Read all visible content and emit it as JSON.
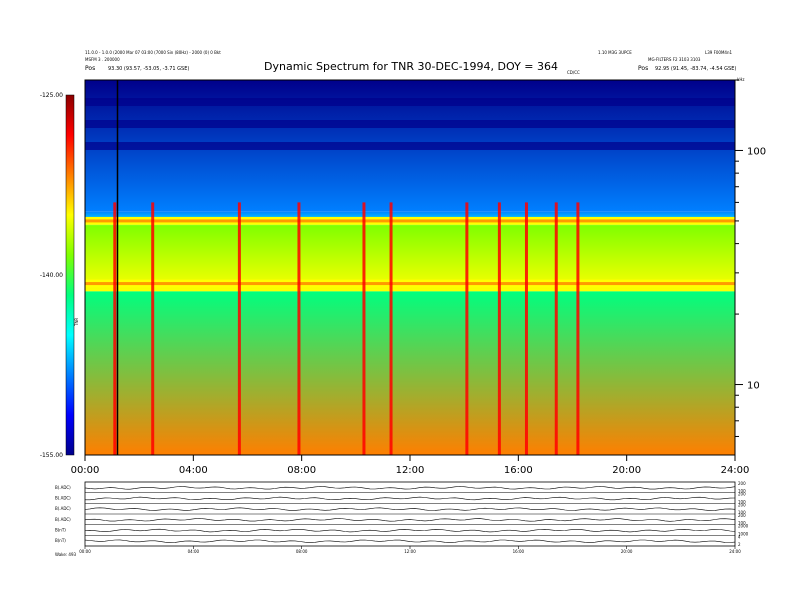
{
  "chart_data": {
    "type": "heatmap",
    "title": "Dynamic Spectrum for TNR 30-DEC-1994, DOY = 364",
    "header_left_1": "11.0.0 - 1.0.0 (2000 Mar 07 03:00 (7000 Sin (80Hz) - 2000 (0) 0 Bkt",
    "header_left_2": "MSFM 3 . 200000",
    "header_left_3_label": "Pos",
    "header_left_3_value": "93.30 (93.57, -53.05, -3.71 GSE)",
    "header_right_1": "1.10 M3G 3UPCE",
    "header_right_2": "L39 F00M4n1",
    "header_right_3": "MG-FILTERS F2 3103 3103",
    "header_right_4_label": "Pos",
    "header_right_4_value": "92.95 (91.45, -83.74, -4.54 GSE)",
    "marker_label": "CD/CC",
    "x_ticks": [
      "00:00",
      "04:00",
      "08:00",
      "12:00",
      "16:00",
      "20:00",
      "24:00"
    ],
    "x_range_hours": [
      0,
      24
    ],
    "y_unit": "kHz",
    "y_scale": "log",
    "y_range": [
      5,
      200
    ],
    "y_ticks": [
      {
        "v": 100,
        "label": "100"
      },
      {
        "v": 10,
        "label": "10"
      }
    ],
    "colorbar": {
      "ticks": [
        "-125.00",
        "-140.00",
        "-155.00"
      ],
      "range": [
        -155,
        -125
      ],
      "label": "TNR"
    },
    "palette": [
      "#00008b",
      "#0000ff",
      "#007fff",
      "#00ffff",
      "#00ff7f",
      "#7fff00",
      "#ffff00",
      "#ff7f00",
      "#ff0000",
      "#8b0000"
    ],
    "bands": [
      {
        "name": "upper",
        "from_khz": 55,
        "to_khz": 200,
        "value": 0.18
      },
      {
        "name": "gap",
        "from_khz": 48,
        "to_khz": 55,
        "value": 0.35
      },
      {
        "name": "mid",
        "from_khz": 25,
        "to_khz": 48,
        "value": 0.62
      },
      {
        "name": "low",
        "from_khz": 5,
        "to_khz": 25,
        "value": 0.55
      }
    ],
    "emission_lines_khz": [
      50,
      27
    ],
    "bursts_hours": [
      1.1,
      2.5,
      5.7,
      7.9,
      10.3,
      11.3,
      14.1,
      15.3,
      16.3,
      17.4,
      18.2
    ],
    "panels": [
      {
        "label": "B(.ADC)",
        "ticks": [
          "200",
          "100"
        ]
      },
      {
        "label": "B(.ADC)",
        "ticks": [
          "200",
          "100"
        ]
      },
      {
        "label": "B(.ADC)",
        "ticks": [
          "200",
          "100"
        ]
      },
      {
        "label": "B(.ADC)",
        "ticks": [
          "200",
          "100"
        ]
      },
      {
        "label": "B(nT)",
        "ticks": [
          "2000",
          "1000"
        ]
      },
      {
        "label": "B(nT)",
        "ticks": [
          "4",
          "2"
        ]
      }
    ],
    "panel_x_ticks": [
      "00:00",
      "04:00",
      "08:00",
      "12:00",
      "16:00",
      "20:00",
      "24:00"
    ],
    "footer_label": "Wake: 493"
  }
}
